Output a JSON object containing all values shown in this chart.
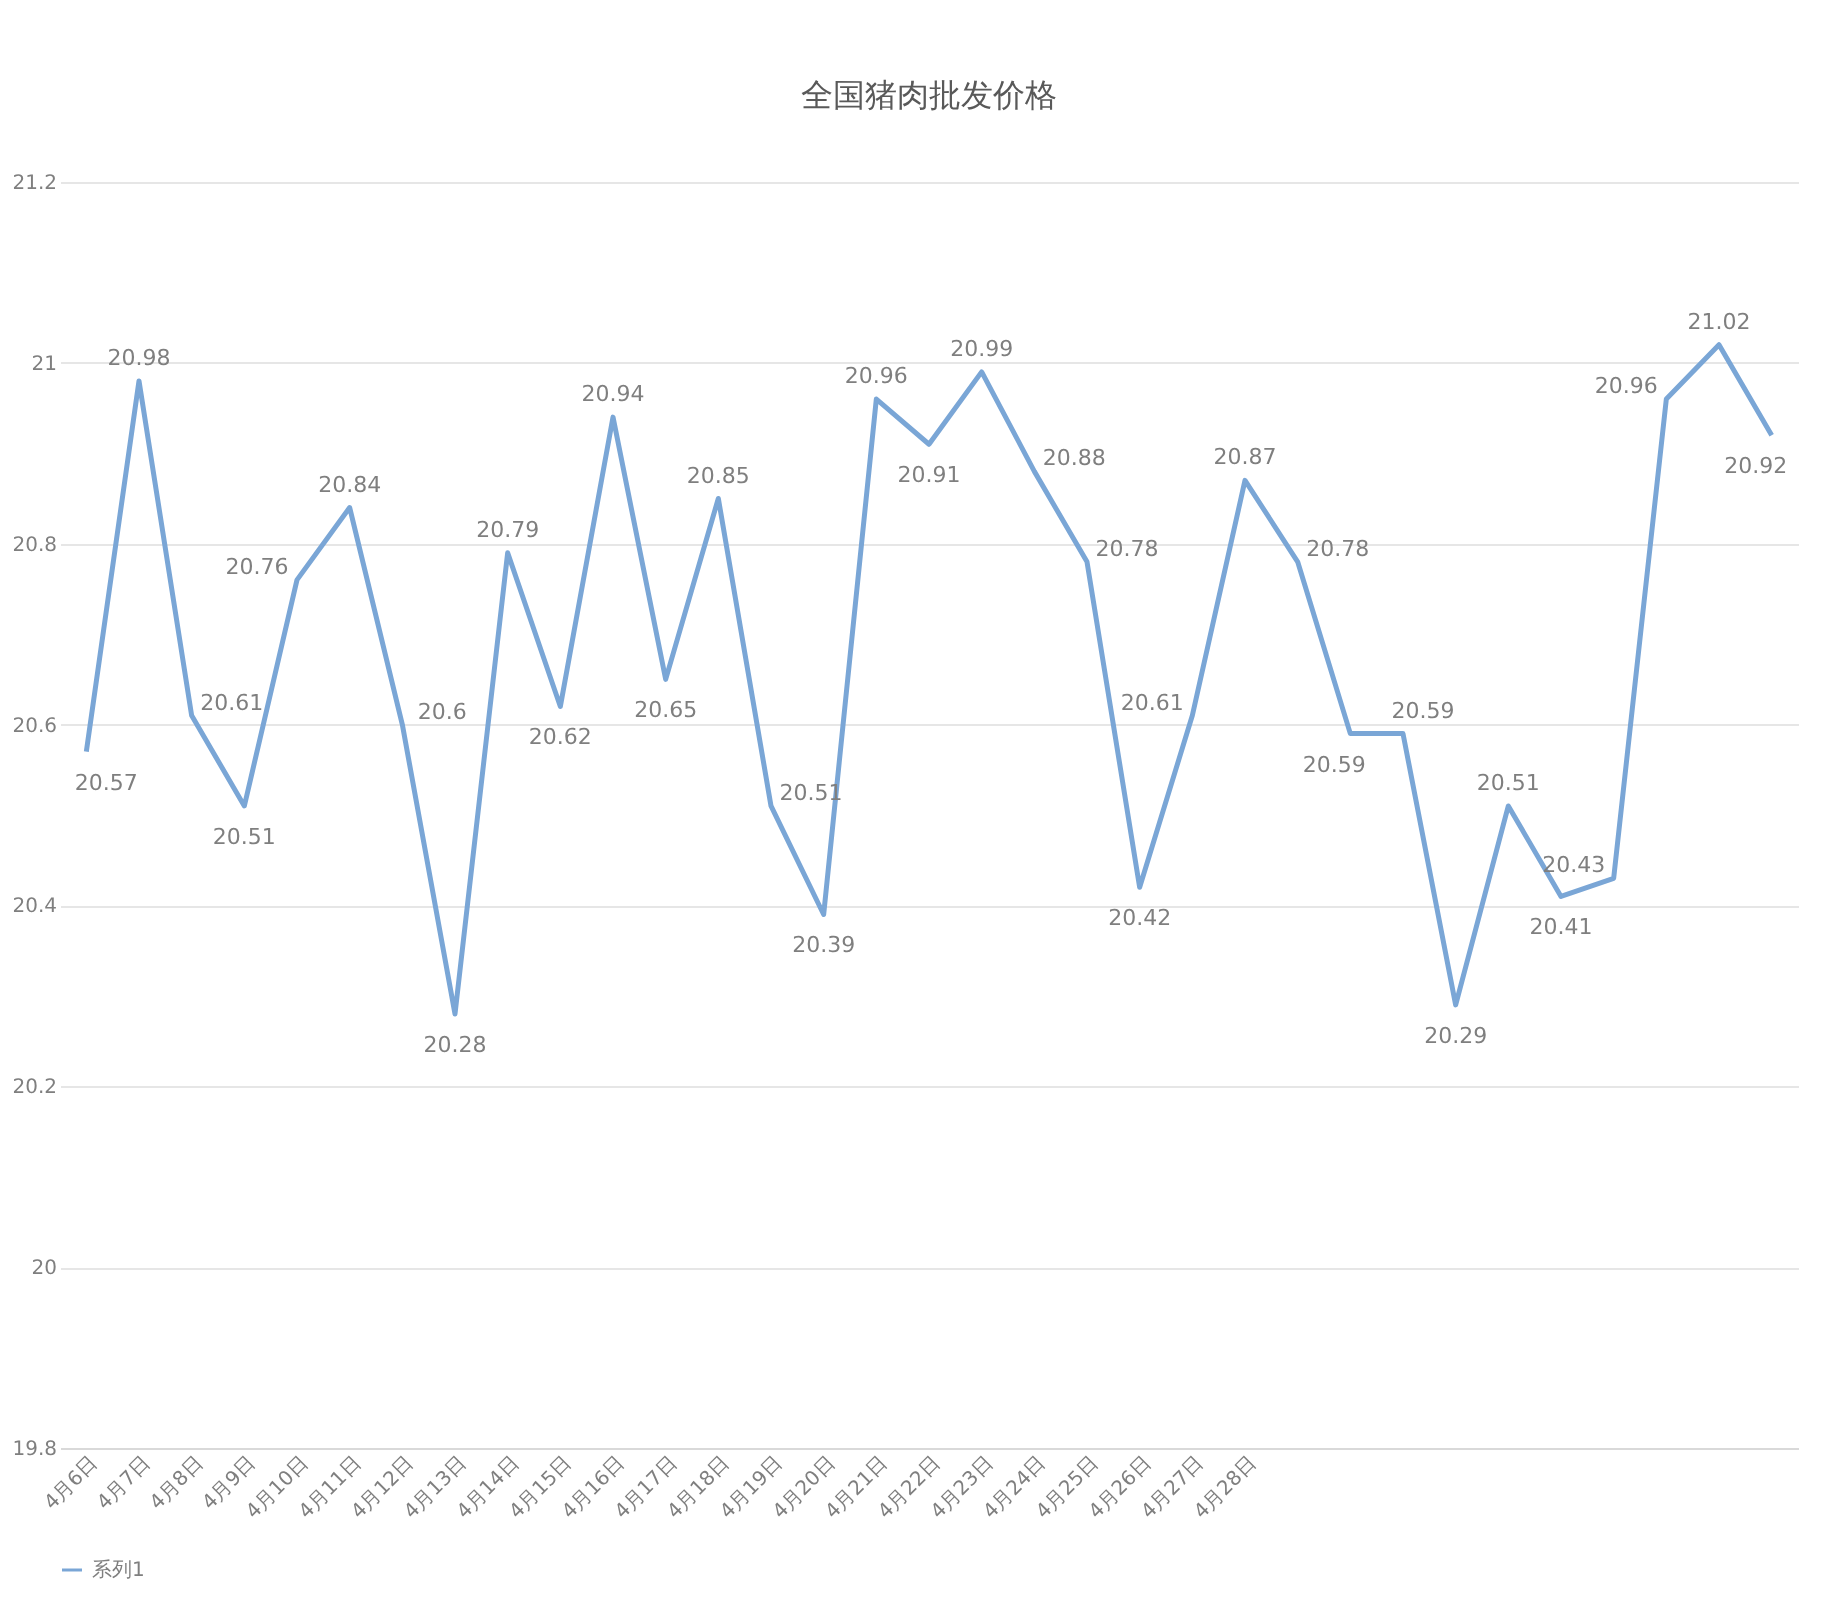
{
  "chart_data": {
    "type": "line",
    "title": "全国猪肉批发价格",
    "categories": [
      "4月6日",
      "4月7日",
      "4月8日",
      "4月9日",
      "4月10日",
      "4月11日",
      "4月12日",
      "4月13日",
      "4月14日",
      "4月15日",
      "4月16日",
      "4月17日",
      "4月18日",
      "4月19日",
      "4月20日",
      "4月21日",
      "4月22日",
      "4月23日",
      "4月24日",
      "4月25日",
      "4月26日",
      "4月27日",
      "4月28日",
      null,
      null,
      null,
      null,
      null,
      null,
      null,
      null,
      null,
      null
    ],
    "series": [
      {
        "name": "系列1",
        "color": "#7aa6d6",
        "values": [
          20.57,
          20.98,
          20.61,
          20.51,
          20.76,
          20.84,
          20.6,
          20.28,
          20.79,
          20.62,
          20.94,
          20.65,
          20.85,
          20.51,
          20.39,
          20.96,
          20.91,
          20.99,
          20.88,
          20.78,
          20.42,
          20.61,
          20.87,
          20.78,
          20.59,
          20.59,
          20.29,
          20.51,
          20.41,
          20.43,
          20.96,
          21.02,
          20.92
        ]
      }
    ],
    "ylim": [
      19.8,
      21.2
    ],
    "yticks": [
      19.8,
      {
        "value": 20,
        "label": "20"
      },
      20.2,
      20.4,
      20.6,
      20.8,
      {
        "value": 21,
        "label": "21"
      },
      21.2
    ],
    "grid": "y",
    "legend": "bottom",
    "data_labels": true,
    "marker": "none",
    "line_style": "solid"
  }
}
